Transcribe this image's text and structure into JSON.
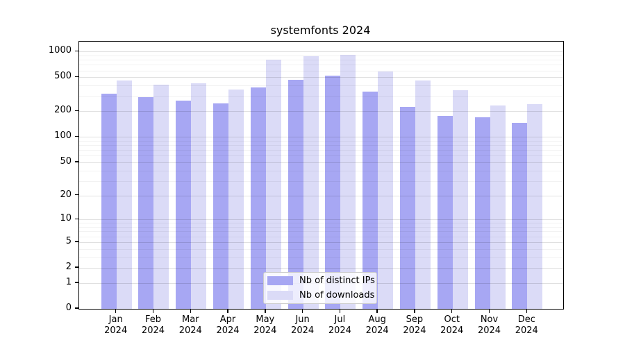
{
  "title": "systemfonts 2024",
  "legend": {
    "items": [
      {
        "label": "Nb of distinct IPs",
        "color": "#a7a7f3"
      },
      {
        "label": "Nb of downloads",
        "color": "#dbdbf7"
      }
    ]
  },
  "chart_data": {
    "type": "bar",
    "title": "systemfonts 2024",
    "categories": [
      "Jan 2024",
      "Feb 2024",
      "Mar 2024",
      "Apr 2024",
      "May 2024",
      "Jun 2024",
      "Jul 2024",
      "Aug 2024",
      "Sep 2024",
      "Oct 2024",
      "Nov 2024",
      "Dec 2024"
    ],
    "series": [
      {
        "name": "Nb of distinct IPs",
        "color": "#a7a7f3",
        "values": [
          320,
          293,
          265,
          246,
          381,
          465,
          520,
          342,
          225,
          176,
          169,
          148
        ]
      },
      {
        "name": "Nb of downloads",
        "color": "#dbdbf7",
        "values": [
          460,
          413,
          425,
          359,
          805,
          875,
          920,
          590,
          462,
          351,
          236,
          242
        ]
      }
    ],
    "xlabel": "",
    "ylabel": "",
    "yscale": "log1p",
    "y_major_ticks": [
      0,
      1,
      2,
      5,
      10,
      20,
      50,
      100,
      200,
      500,
      1000
    ],
    "y_minor_gridlines": [
      3,
      4,
      6,
      7,
      8,
      9,
      30,
      40,
      60,
      70,
      80,
      90,
      300,
      400,
      600,
      700,
      800,
      900
    ],
    "ylim": [
      0,
      1305
    ],
    "grid": true,
    "legend_position": "bottom-center"
  }
}
